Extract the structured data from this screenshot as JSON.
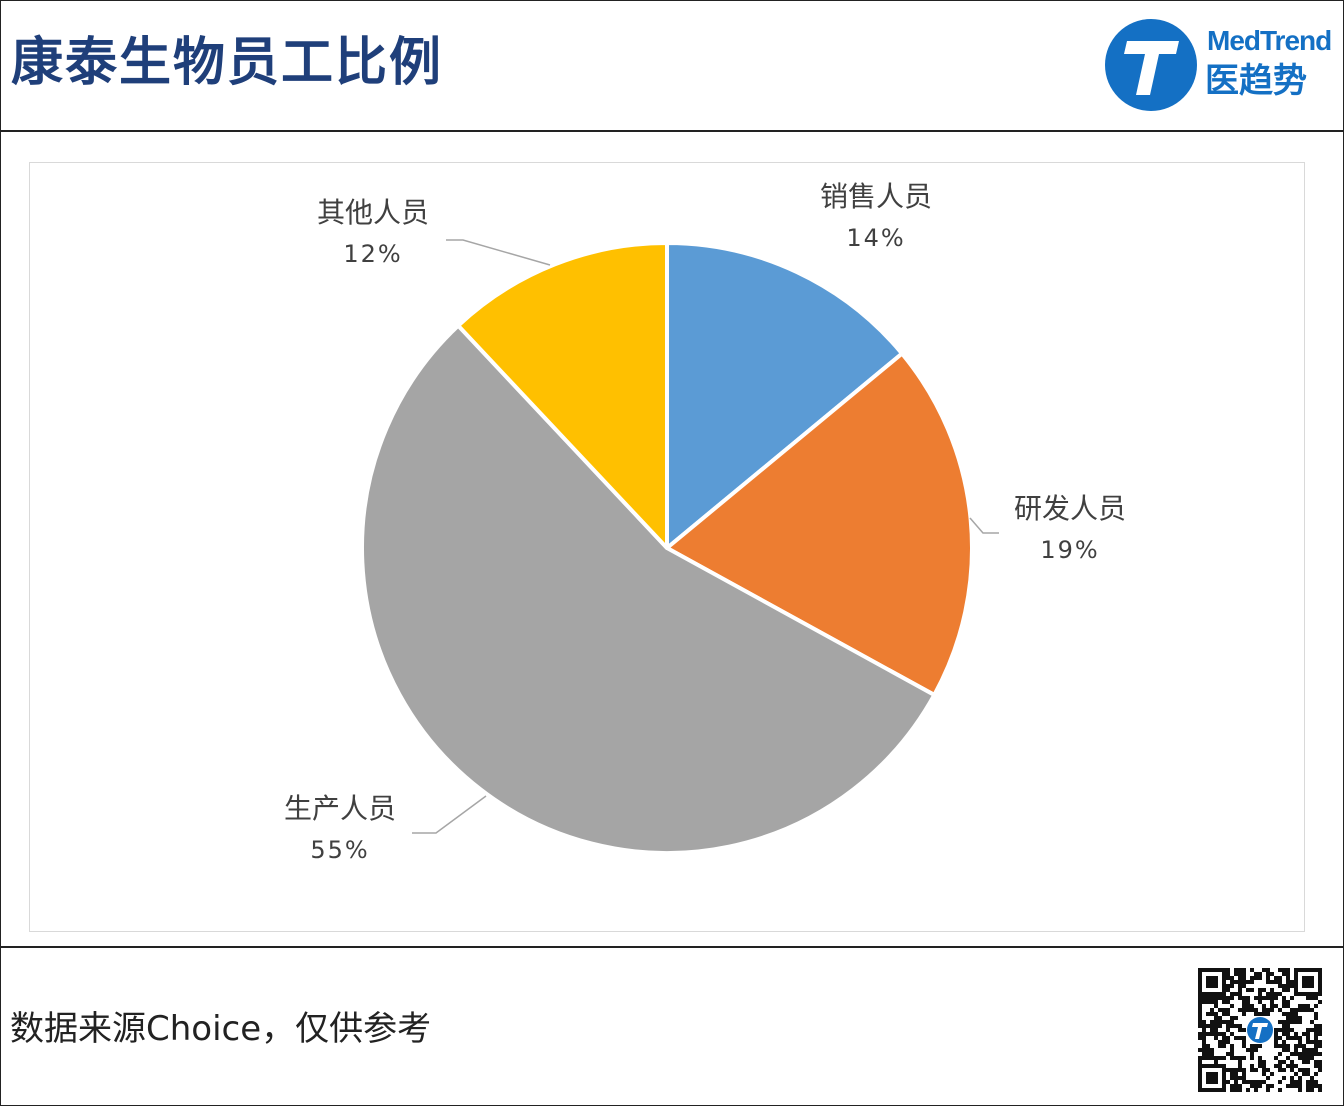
{
  "header": {
    "title": "康泰生物员工比例",
    "logo_en": "MedTrend",
    "logo_zh": "医趋势"
  },
  "footer": {
    "source": "数据来源Choice，仅供参考"
  },
  "colors": {
    "title": "#1f3f7a",
    "brand": "#1470c4"
  },
  "chart_data": {
    "type": "pie",
    "categories": [
      "销售人员",
      "研发人员",
      "生产人员",
      "其他人员"
    ],
    "values": [
      14,
      19,
      55,
      12
    ],
    "labels": [
      "14%",
      "19%",
      "55%",
      "12%"
    ],
    "colors": [
      "#5b9bd5",
      "#ed7d31",
      "#a5a5a5",
      "#ffc000"
    ],
    "start": "top, clockwise",
    "data_labels": "outside with leader lines"
  }
}
